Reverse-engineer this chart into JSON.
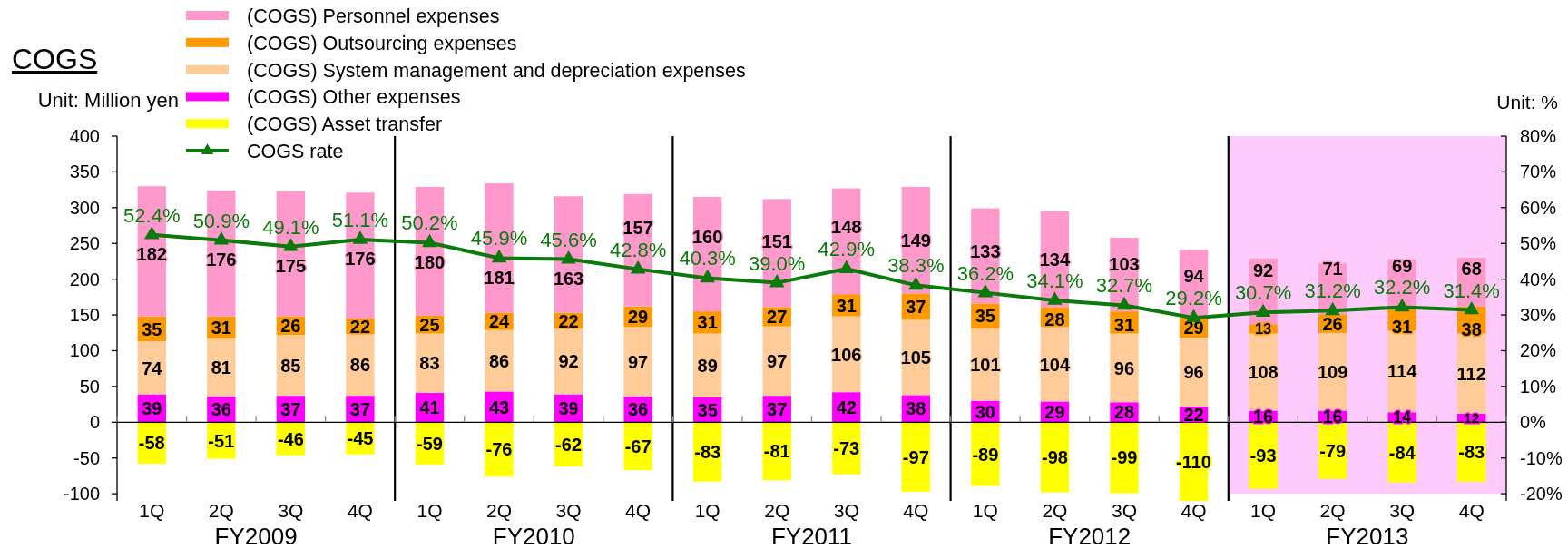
{
  "chart_data": {
    "type": "bar",
    "title": "COGS",
    "ylabel": "Unit: Million yen",
    "y2label": "Unit: %",
    "categories": [
      "1Q",
      "2Q",
      "3Q",
      "4Q",
      "1Q",
      "2Q",
      "3Q",
      "4Q",
      "1Q",
      "2Q",
      "3Q",
      "4Q",
      "1Q",
      "2Q",
      "3Q",
      "4Q",
      "1Q",
      "2Q",
      "3Q",
      "4Q"
    ],
    "ylim": [
      -110,
      400
    ],
    "yticks": [
      -100,
      -50,
      0,
      50,
      100,
      150,
      200,
      250,
      300,
      350,
      400
    ],
    "y2lim": [
      -22,
      80
    ],
    "y2ticks": [
      {
        "value": -20,
        "label": "-20%"
      },
      {
        "value": -10,
        "label": "-10%"
      },
      {
        "value": 0,
        "label": "0%"
      },
      {
        "value": 10,
        "label": "10%"
      },
      {
        "value": 20,
        "label": "20%"
      },
      {
        "value": 30,
        "label": "30%"
      },
      {
        "value": 40,
        "label": "40%"
      },
      {
        "value": 50,
        "label": "50%"
      },
      {
        "value": 60,
        "label": "60%"
      },
      {
        "value": 70,
        "label": "70%"
      },
      {
        "value": 80,
        "label": "80%"
      }
    ],
    "stacked": true,
    "data_labels": true,
    "legend": "top left",
    "series": [
      {
        "name": "(COGS) Asset transfer",
        "color": "#ffff00",
        "values": [
          -58,
          -51,
          -46,
          -45,
          -59,
          -76,
          -62,
          -67,
          -83,
          -81,
          -73,
          -97,
          -89,
          -98,
          -99,
          -110,
          -93,
          -79,
          -84,
          -83
        ]
      },
      {
        "name": "(COGS) Other expenses",
        "color": "#ff00ff",
        "values": [
          39,
          36,
          37,
          37,
          41,
          43,
          39,
          36,
          35,
          37,
          42,
          38,
          30,
          29,
          28,
          22,
          16,
          16,
          14,
          12
        ]
      },
      {
        "name": "(COGS) System management and depreciation expenses",
        "color": "#ffcc99",
        "values": [
          74,
          81,
          85,
          86,
          83,
          86,
          92,
          97,
          89,
          97,
          106,
          105,
          101,
          104,
          96,
          96,
          108,
          109,
          114,
          112
        ]
      },
      {
        "name": "(COGS) Outsourcing expenses",
        "color": "#ff9900",
        "values": [
          35,
          31,
          26,
          22,
          25,
          24,
          22,
          29,
          31,
          27,
          31,
          37,
          35,
          28,
          31,
          29,
          13,
          26,
          31,
          38
        ]
      },
      {
        "name": "(COGS) Personnel expenses",
        "color": "#ff99cc",
        "values": [
          182,
          176,
          175,
          176,
          180,
          181,
          163,
          157,
          160,
          151,
          148,
          149,
          133,
          134,
          103,
          94,
          92,
          71,
          69,
          68
        ]
      },
      {
        "name": "COGS rate",
        "type": "line",
        "axis": "y2",
        "color": "#0a7a0a",
        "marker": "triangle",
        "values": [
          52.4,
          50.9,
          49.1,
          51.1,
          50.2,
          45.9,
          45.6,
          42.8,
          40.3,
          39.0,
          42.9,
          38.3,
          36.2,
          34.1,
          32.7,
          29.2,
          30.7,
          31.2,
          32.2,
          31.4
        ],
        "value_labels": [
          "52.4%",
          "50.9%",
          "49.1%",
          "51.1%",
          "50.2%",
          "45.9%",
          "45.6%",
          "42.8%",
          "40.3%",
          "39.0%",
          "42.9%",
          "38.3%",
          "36.2%",
          "34.1%",
          "32.7%",
          "29.2%",
          "30.7%",
          "31.2%",
          "32.2%",
          "31.4%"
        ]
      }
    ],
    "annotations": [
      "FY2009",
      "FY2010",
      "FY2011",
      "FY2012",
      "FY2013"
    ]
  }
}
